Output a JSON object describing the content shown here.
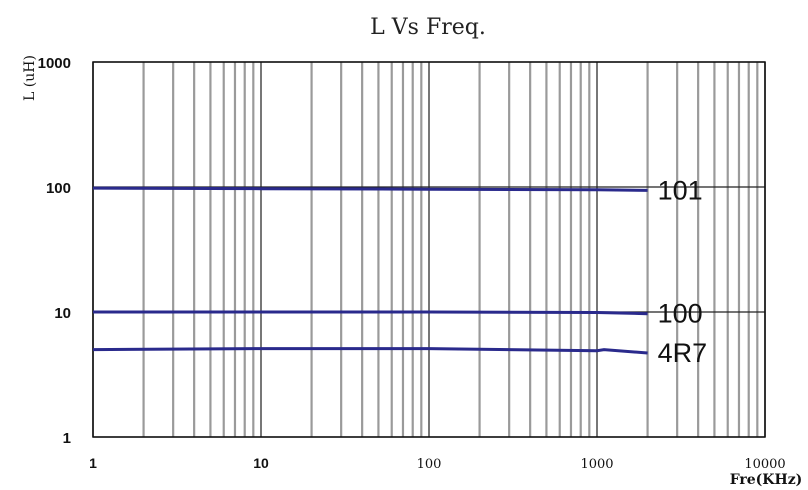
{
  "chart_data": {
    "type": "line",
    "title": "L Vs Freq.",
    "xlabel": "Fre(KHz)",
    "ylabel": "L (uH)",
    "xscale": "log",
    "yscale": "log",
    "xlim": [
      1,
      10000
    ],
    "ylim": [
      1,
      1000
    ],
    "x_ticks": [
      "1",
      "10",
      "100",
      "1000",
      "10000"
    ],
    "y_ticks": [
      "1",
      "10",
      "100",
      "1000"
    ],
    "grid": true,
    "series": [
      {
        "name": "101",
        "color": "#2a2a8c",
        "x": [
          1,
          10,
          100,
          1000,
          2000
        ],
        "y": [
          98,
          97,
          96,
          95,
          94
        ]
      },
      {
        "name": "100",
        "color": "#2a2a8c",
        "x": [
          1,
          10,
          100,
          1000,
          2000
        ],
        "y": [
          10,
          10,
          10,
          9.9,
          9.7
        ]
      },
      {
        "name": "4R7",
        "color": "#2a2a8c",
        "x": [
          1,
          10,
          100,
          1000,
          1100,
          2000
        ],
        "y": [
          5.0,
          5.1,
          5.1,
          4.9,
          5.0,
          4.7
        ]
      }
    ]
  }
}
